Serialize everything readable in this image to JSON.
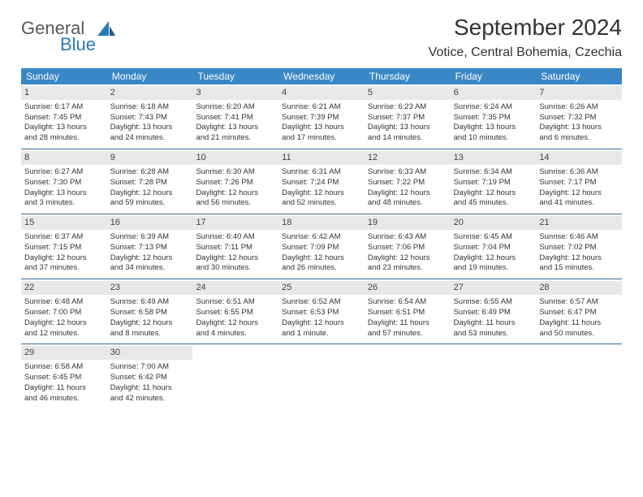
{
  "logo": {
    "text1": "General",
    "text2": "Blue"
  },
  "title": "September 2024",
  "subtitle": "Votice, Central Bohemia, Czechia",
  "colors": {
    "header_bg": "#3a87c7",
    "header_text": "#ffffff",
    "daynum_bg": "#e8e8e8",
    "week_border": "#3a6a94",
    "text": "#333333",
    "logo_gray": "#5a5a5a",
    "logo_blue": "#2a7ab8",
    "page_bg": "#ffffff"
  },
  "day_names": [
    "Sunday",
    "Monday",
    "Tuesday",
    "Wednesday",
    "Thursday",
    "Friday",
    "Saturday"
  ],
  "weeks": [
    [
      {
        "n": "1",
        "sr": "Sunrise: 6:17 AM",
        "ss": "Sunset: 7:45 PM",
        "d1": "Daylight: 13 hours",
        "d2": "and 28 minutes."
      },
      {
        "n": "2",
        "sr": "Sunrise: 6:18 AM",
        "ss": "Sunset: 7:43 PM",
        "d1": "Daylight: 13 hours",
        "d2": "and 24 minutes."
      },
      {
        "n": "3",
        "sr": "Sunrise: 6:20 AM",
        "ss": "Sunset: 7:41 PM",
        "d1": "Daylight: 13 hours",
        "d2": "and 21 minutes."
      },
      {
        "n": "4",
        "sr": "Sunrise: 6:21 AM",
        "ss": "Sunset: 7:39 PM",
        "d1": "Daylight: 13 hours",
        "d2": "and 17 minutes."
      },
      {
        "n": "5",
        "sr": "Sunrise: 6:23 AM",
        "ss": "Sunset: 7:37 PM",
        "d1": "Daylight: 13 hours",
        "d2": "and 14 minutes."
      },
      {
        "n": "6",
        "sr": "Sunrise: 6:24 AM",
        "ss": "Sunset: 7:35 PM",
        "d1": "Daylight: 13 hours",
        "d2": "and 10 minutes."
      },
      {
        "n": "7",
        "sr": "Sunrise: 6:26 AM",
        "ss": "Sunset: 7:32 PM",
        "d1": "Daylight: 13 hours",
        "d2": "and 6 minutes."
      }
    ],
    [
      {
        "n": "8",
        "sr": "Sunrise: 6:27 AM",
        "ss": "Sunset: 7:30 PM",
        "d1": "Daylight: 13 hours",
        "d2": "and 3 minutes."
      },
      {
        "n": "9",
        "sr": "Sunrise: 6:28 AM",
        "ss": "Sunset: 7:28 PM",
        "d1": "Daylight: 12 hours",
        "d2": "and 59 minutes."
      },
      {
        "n": "10",
        "sr": "Sunrise: 6:30 AM",
        "ss": "Sunset: 7:26 PM",
        "d1": "Daylight: 12 hours",
        "d2": "and 56 minutes."
      },
      {
        "n": "11",
        "sr": "Sunrise: 6:31 AM",
        "ss": "Sunset: 7:24 PM",
        "d1": "Daylight: 12 hours",
        "d2": "and 52 minutes."
      },
      {
        "n": "12",
        "sr": "Sunrise: 6:33 AM",
        "ss": "Sunset: 7:22 PM",
        "d1": "Daylight: 12 hours",
        "d2": "and 48 minutes."
      },
      {
        "n": "13",
        "sr": "Sunrise: 6:34 AM",
        "ss": "Sunset: 7:19 PM",
        "d1": "Daylight: 12 hours",
        "d2": "and 45 minutes."
      },
      {
        "n": "14",
        "sr": "Sunrise: 6:36 AM",
        "ss": "Sunset: 7:17 PM",
        "d1": "Daylight: 12 hours",
        "d2": "and 41 minutes."
      }
    ],
    [
      {
        "n": "15",
        "sr": "Sunrise: 6:37 AM",
        "ss": "Sunset: 7:15 PM",
        "d1": "Daylight: 12 hours",
        "d2": "and 37 minutes."
      },
      {
        "n": "16",
        "sr": "Sunrise: 6:39 AM",
        "ss": "Sunset: 7:13 PM",
        "d1": "Daylight: 12 hours",
        "d2": "and 34 minutes."
      },
      {
        "n": "17",
        "sr": "Sunrise: 6:40 AM",
        "ss": "Sunset: 7:11 PM",
        "d1": "Daylight: 12 hours",
        "d2": "and 30 minutes."
      },
      {
        "n": "18",
        "sr": "Sunrise: 6:42 AM",
        "ss": "Sunset: 7:09 PM",
        "d1": "Daylight: 12 hours",
        "d2": "and 26 minutes."
      },
      {
        "n": "19",
        "sr": "Sunrise: 6:43 AM",
        "ss": "Sunset: 7:06 PM",
        "d1": "Daylight: 12 hours",
        "d2": "and 23 minutes."
      },
      {
        "n": "20",
        "sr": "Sunrise: 6:45 AM",
        "ss": "Sunset: 7:04 PM",
        "d1": "Daylight: 12 hours",
        "d2": "and 19 minutes."
      },
      {
        "n": "21",
        "sr": "Sunrise: 6:46 AM",
        "ss": "Sunset: 7:02 PM",
        "d1": "Daylight: 12 hours",
        "d2": "and 15 minutes."
      }
    ],
    [
      {
        "n": "22",
        "sr": "Sunrise: 6:48 AM",
        "ss": "Sunset: 7:00 PM",
        "d1": "Daylight: 12 hours",
        "d2": "and 12 minutes."
      },
      {
        "n": "23",
        "sr": "Sunrise: 6:49 AM",
        "ss": "Sunset: 6:58 PM",
        "d1": "Daylight: 12 hours",
        "d2": "and 8 minutes."
      },
      {
        "n": "24",
        "sr": "Sunrise: 6:51 AM",
        "ss": "Sunset: 6:55 PM",
        "d1": "Daylight: 12 hours",
        "d2": "and 4 minutes."
      },
      {
        "n": "25",
        "sr": "Sunrise: 6:52 AM",
        "ss": "Sunset: 6:53 PM",
        "d1": "Daylight: 12 hours",
        "d2": "and 1 minute."
      },
      {
        "n": "26",
        "sr": "Sunrise: 6:54 AM",
        "ss": "Sunset: 6:51 PM",
        "d1": "Daylight: 11 hours",
        "d2": "and 57 minutes."
      },
      {
        "n": "27",
        "sr": "Sunrise: 6:55 AM",
        "ss": "Sunset: 6:49 PM",
        "d1": "Daylight: 11 hours",
        "d2": "and 53 minutes."
      },
      {
        "n": "28",
        "sr": "Sunrise: 6:57 AM",
        "ss": "Sunset: 6:47 PM",
        "d1": "Daylight: 11 hours",
        "d2": "and 50 minutes."
      }
    ],
    [
      {
        "n": "29",
        "sr": "Sunrise: 6:58 AM",
        "ss": "Sunset: 6:45 PM",
        "d1": "Daylight: 11 hours",
        "d2": "and 46 minutes."
      },
      {
        "n": "30",
        "sr": "Sunrise: 7:00 AM",
        "ss": "Sunset: 6:42 PM",
        "d1": "Daylight: 11 hours",
        "d2": "and 42 minutes."
      },
      {
        "empty": true
      },
      {
        "empty": true
      },
      {
        "empty": true
      },
      {
        "empty": true
      },
      {
        "empty": true
      }
    ]
  ]
}
